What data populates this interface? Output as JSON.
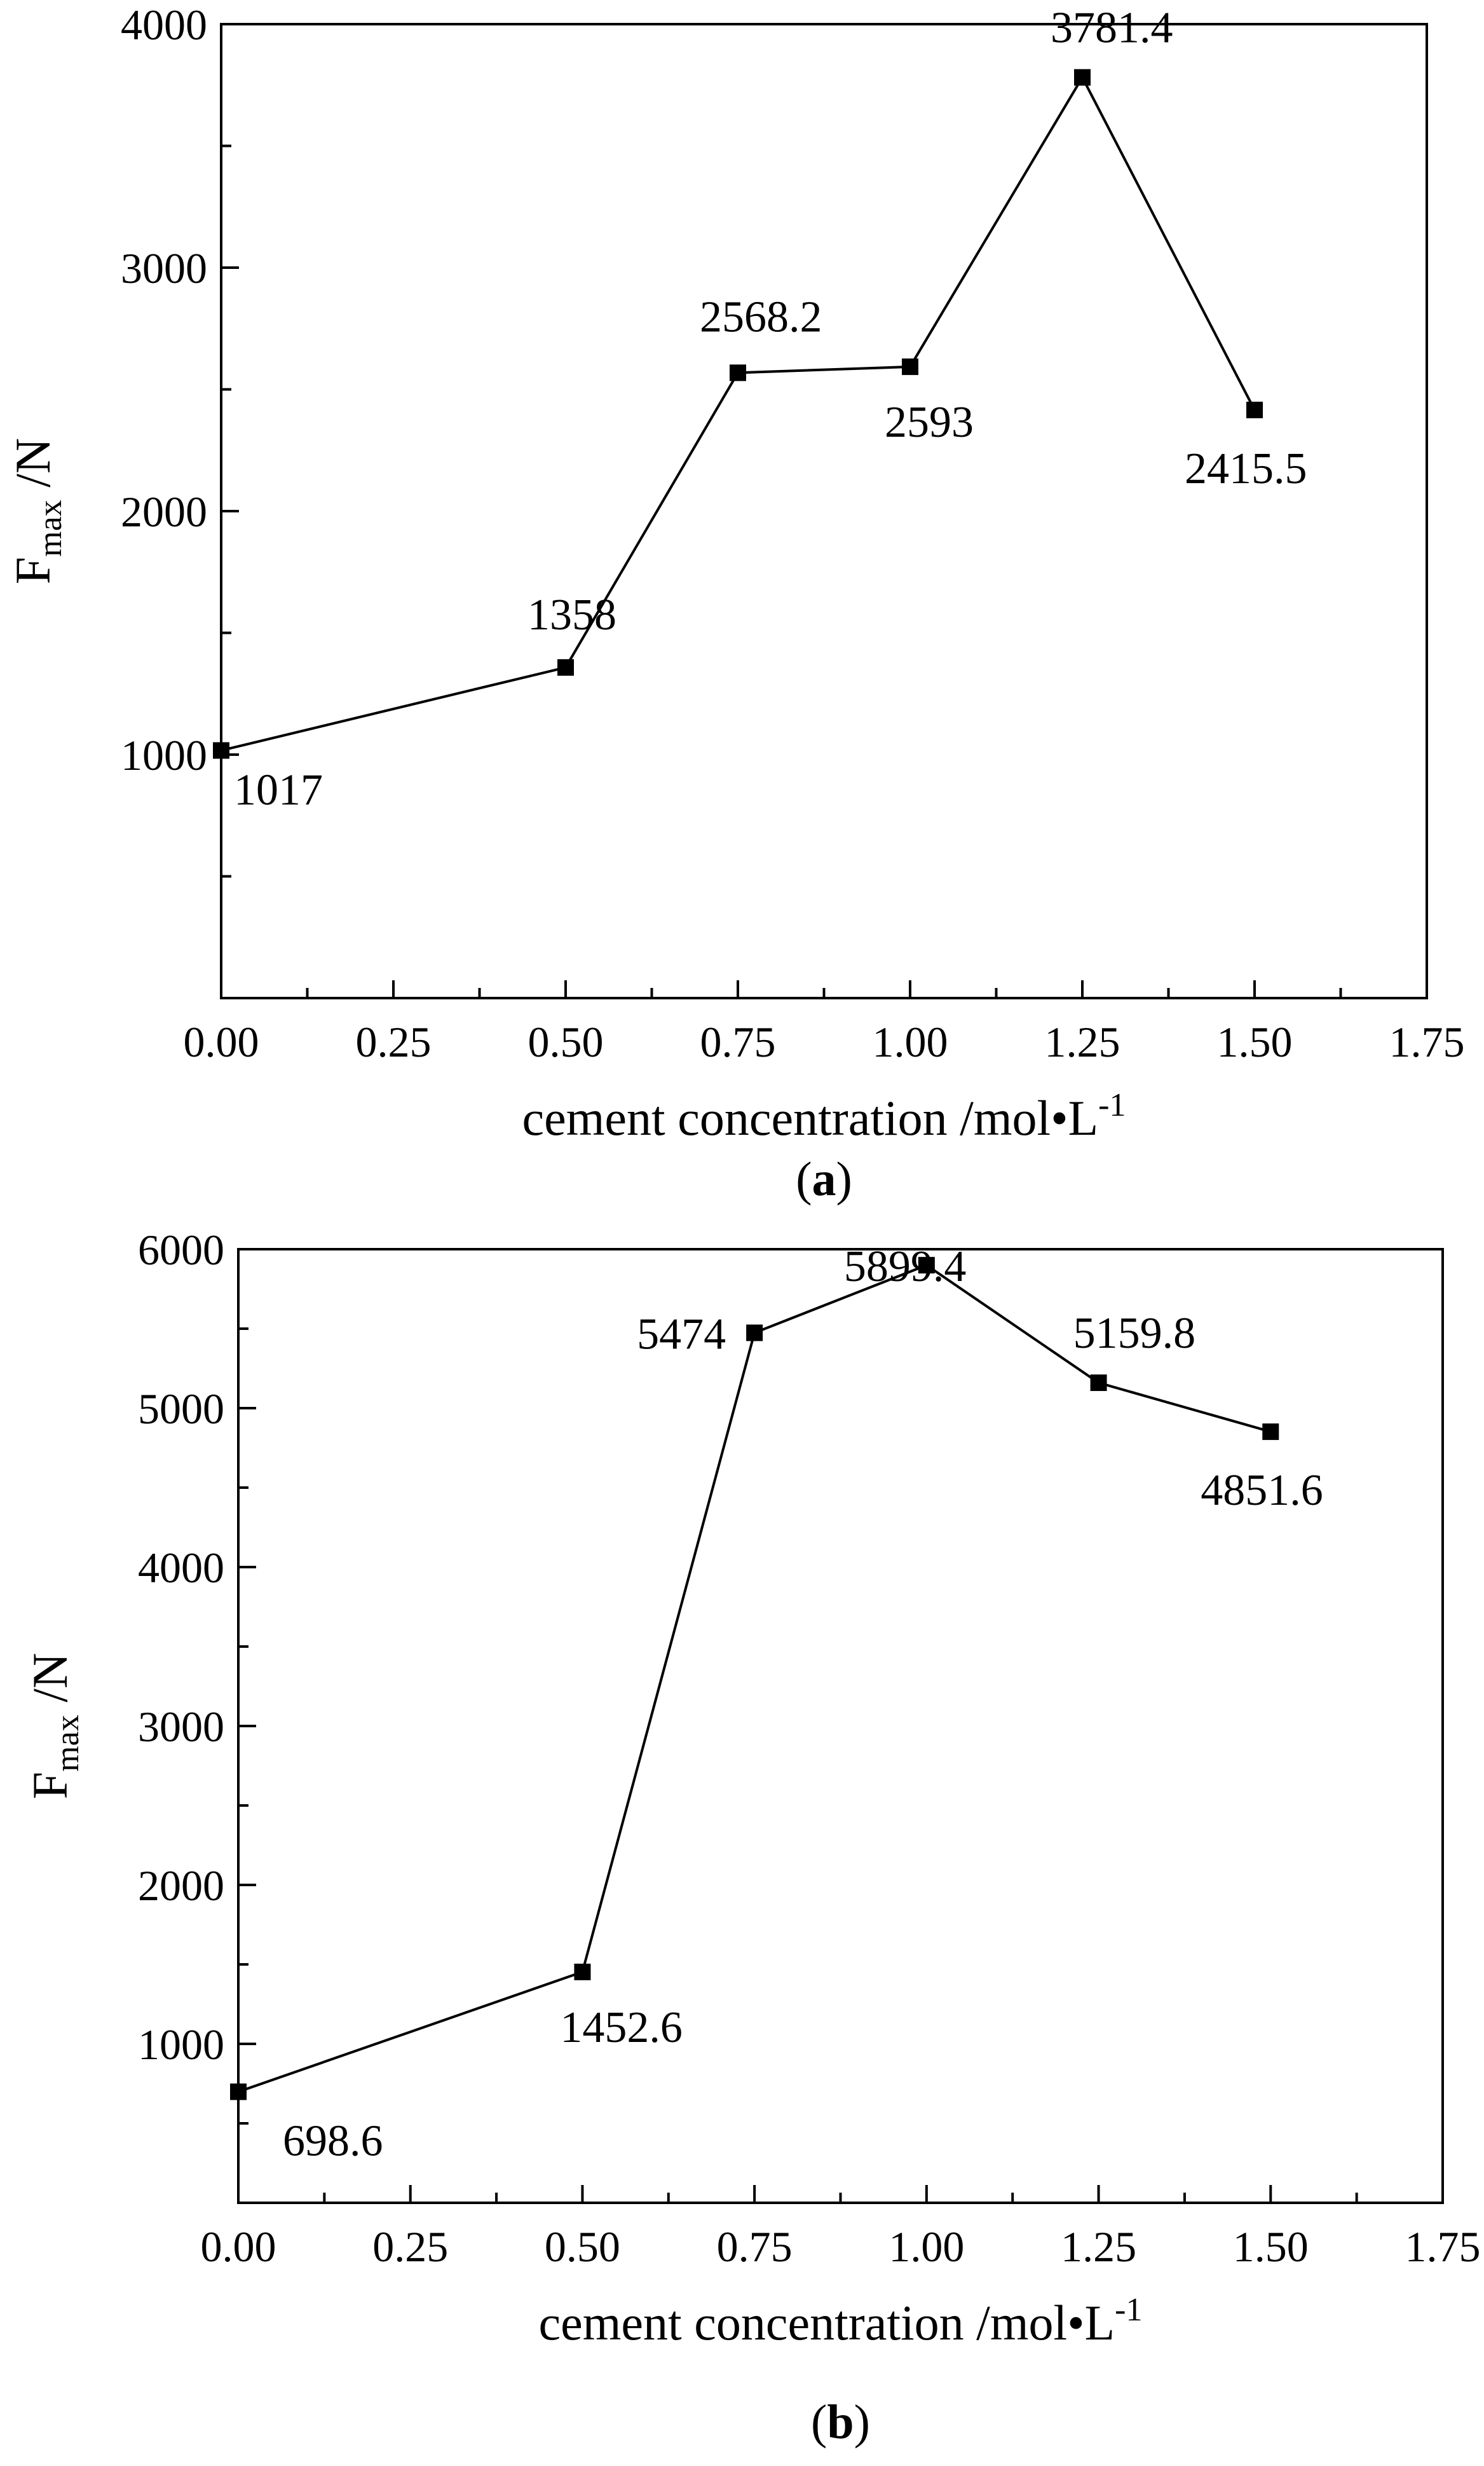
{
  "chart_data": [
    {
      "type": "line",
      "panel_label": "a",
      "ylabel_main": "F",
      "ylabel_sub": "max",
      "ylabel_unit": " /N",
      "xlabel_main": "cement concentration /mol•L",
      "xlabel_sup": "-1",
      "xlim": [
        0,
        1.75
      ],
      "ylim": [
        0,
        4000
      ],
      "xticks": [
        "0.00",
        "0.25",
        "0.50",
        "0.75",
        "1.00",
        "1.25",
        "1.50",
        "1.75"
      ],
      "yticks": [
        "1000",
        "2000",
        "3000",
        "4000"
      ],
      "x": [
        0,
        0.5,
        0.75,
        1.0,
        1.25,
        1.5
      ],
      "y": [
        1017,
        1358,
        2568.2,
        2593,
        3781.4,
        2415.5
      ],
      "labels": [
        "1017",
        "1358",
        "2568.2",
        "2593",
        "3781.4",
        "2415.5"
      ]
    },
    {
      "type": "line",
      "panel_label": "b",
      "ylabel_main": "F",
      "ylabel_sub": "max",
      "ylabel_unit": " /N",
      "xlabel_main": "cement concentration /mol•L",
      "xlabel_sup": "-1",
      "xlim": [
        0,
        1.75
      ],
      "ylim": [
        0,
        6000
      ],
      "xticks": [
        "0.00",
        "0.25",
        "0.50",
        "0.75",
        "1.00",
        "1.25",
        "1.50",
        "1.75"
      ],
      "yticks": [
        "1000",
        "2000",
        "3000",
        "4000",
        "5000",
        "6000"
      ],
      "x": [
        0,
        0.5,
        0.75,
        1.0,
        1.25,
        1.5
      ],
      "y": [
        698.6,
        1452.6,
        5474,
        5899.4,
        5159.8,
        4851.6
      ],
      "labels": [
        "698.6",
        "1452.6",
        "5474",
        "5899.4",
        "5159.8",
        "4851.6"
      ]
    }
  ]
}
